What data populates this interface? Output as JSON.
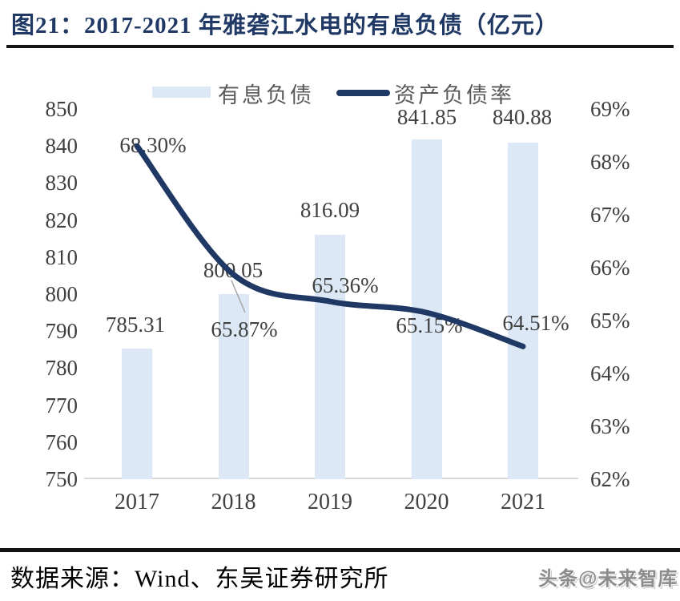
{
  "title": "图21：2017-2021 年雅砻江水电的有息负债（亿元）",
  "legend": {
    "bar_label": "有息负债",
    "line_label": "资产负债率"
  },
  "chart_data": {
    "type": "bar+line",
    "categories": [
      "2017",
      "2018",
      "2019",
      "2020",
      "2021"
    ],
    "series": [
      {
        "name": "有息负债",
        "type": "bar",
        "axis": "left",
        "unit": "亿元",
        "values": [
          785.31,
          800.05,
          816.09,
          841.85,
          840.88
        ],
        "labels": [
          "785.31",
          "800.05",
          "816.09",
          "841.85",
          "840.88"
        ]
      },
      {
        "name": "资产负债率",
        "type": "line",
        "axis": "right",
        "unit": "%",
        "values": [
          68.3,
          65.87,
          65.36,
          65.15,
          64.51
        ],
        "labels": [
          "68.30%",
          "65.87%",
          "65.36%",
          "65.15%",
          "64.51%"
        ]
      }
    ],
    "left_axis": {
      "min": 750,
      "max": 850,
      "step": 10,
      "ticks": [
        "850",
        "840",
        "830",
        "820",
        "810",
        "800",
        "790",
        "780",
        "770",
        "760",
        "750"
      ]
    },
    "right_axis": {
      "min": 62,
      "max": 69,
      "step": 1,
      "ticks": [
        "69%",
        "68%",
        "67%",
        "66%",
        "65%",
        "64%",
        "63%",
        "62%"
      ]
    },
    "grid": false,
    "legend_position": "top"
  },
  "footer": {
    "source": "数据来源：Wind、东吴证券研究所",
    "watermark": "头条@未来智库"
  },
  "colors": {
    "bar_fill": "#dce8f5",
    "line": "#1f3864",
    "title": "#1f3864",
    "data_label": "#404040",
    "legend_text": "#595959",
    "axis_baseline": "#d9d9d9",
    "title_rule": "#151515",
    "footer_rule": "#111111",
    "leader_line": "#a6a6a6"
  }
}
